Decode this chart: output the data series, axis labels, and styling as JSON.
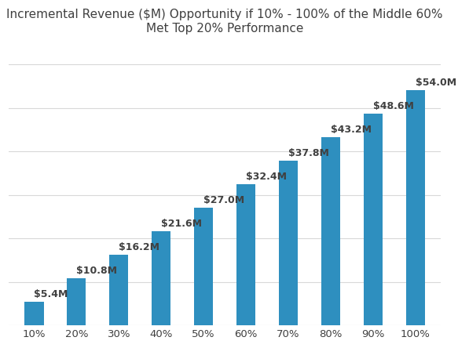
{
  "title": "Incremental Revenue ($M) Opportunity if 10% - 100% of the Middle 60%\nMet Top 20% Performance",
  "categories": [
    "10%",
    "20%",
    "30%",
    "40%",
    "50%",
    "60%",
    "70%",
    "80%",
    "90%",
    "100%"
  ],
  "values": [
    5.4,
    10.8,
    16.2,
    21.6,
    27.0,
    32.4,
    37.8,
    43.2,
    48.6,
    54.0
  ],
  "labels": [
    "$5.4M",
    "$10.8M",
    "$16.2M",
    "$21.6M",
    "$27.0M",
    "$32.4M",
    "$37.8M",
    "$43.2M",
    "$48.6M",
    "$54.0M"
  ],
  "bar_color": "#2e8fbf",
  "background_color": "#ffffff",
  "title_fontsize": 11.0,
  "label_fontsize": 9.0,
  "tick_fontsize": 9.5,
  "ylim": [
    0,
    65
  ],
  "grid_color": "#d8d8d8",
  "text_color": "#404040",
  "bar_width": 0.45,
  "grid_linewidth": 0.8,
  "grid_levels": [
    0,
    10,
    20,
    30,
    40,
    50,
    60
  ]
}
